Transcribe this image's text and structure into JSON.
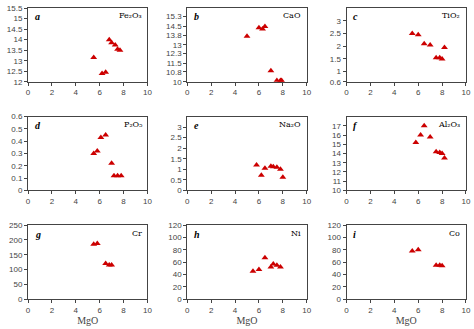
{
  "chart_data": [
    {
      "type": "scatter",
      "title": "a",
      "ylabel": "Fe₂O₃",
      "color": "#cc0000",
      "marker": "triangle-up",
      "grid": false,
      "xlim": [
        0.0,
        10.0
      ],
      "xticks": [
        0,
        2,
        4,
        6,
        8,
        10
      ],
      "ylim": [
        12.0,
        15.5
      ],
      "yticks": [
        12.0,
        12.5,
        13.0,
        13.5,
        14.0,
        14.5,
        15.0,
        15.5
      ],
      "x": [
        5.5,
        6.2,
        6.5,
        6.8,
        7.0,
        7.3,
        7.5,
        7.7
      ],
      "values": [
        13.15,
        12.4,
        12.45,
        14.0,
        13.85,
        13.75,
        13.55,
        13.5
      ]
    },
    {
      "type": "scatter",
      "title": "b",
      "ylabel": "CaO",
      "color": "#cc0000",
      "marker": "triangle-up",
      "grid": false,
      "xlim": [
        0.0,
        10.0
      ],
      "xticks": [
        0,
        2,
        4,
        6,
        8,
        10
      ],
      "ylim": [
        10.0,
        16.0
      ],
      "yticks": [
        10.0,
        10.8,
        11.5,
        12.3,
        13.0,
        13.8,
        14.5,
        15.3
      ],
      "x": [
        5.0,
        6.0,
        6.3,
        6.5,
        7.0,
        7.5,
        7.8,
        7.9
      ],
      "values": [
        13.7,
        14.4,
        14.3,
        14.5,
        10.9,
        10.1,
        10.1,
        10.1
      ]
    },
    {
      "type": "scatter",
      "title": "c",
      "ylabel": "TiO₂",
      "color": "#cc0000",
      "marker": "triangle-up",
      "grid": false,
      "xlim": [
        0.0,
        10.0
      ],
      "xticks": [
        0,
        2,
        4,
        6,
        8,
        10
      ],
      "ylim": [
        0.6,
        3.5
      ],
      "yticks": [
        0.6,
        1.0,
        1.5,
        2.0,
        2.5,
        3.0
      ],
      "x": [
        5.5,
        6.0,
        6.5,
        7.0,
        7.5,
        7.8,
        8.0,
        8.2
      ],
      "values": [
        2.5,
        2.45,
        2.1,
        2.05,
        1.55,
        1.55,
        1.5,
        1.95
      ]
    },
    {
      "type": "scatter",
      "title": "d",
      "ylabel": "P₂O₅",
      "color": "#cc0000",
      "marker": "triangle-up",
      "grid": false,
      "xlim": [
        0.0,
        10.0
      ],
      "xticks": [
        0,
        2,
        4,
        6,
        8,
        10
      ],
      "ylim": [
        0.0,
        0.6
      ],
      "yticks": [
        0.0,
        0.1,
        0.2,
        0.3,
        0.4,
        0.5,
        0.6
      ],
      "x": [
        5.5,
        5.8,
        6.1,
        6.5,
        7.0,
        7.2,
        7.5,
        7.8
      ],
      "values": [
        0.3,
        0.32,
        0.43,
        0.45,
        0.22,
        0.12,
        0.12,
        0.12
      ]
    },
    {
      "type": "scatter",
      "title": "e",
      "ylabel": "Na₂O",
      "color": "#cc0000",
      "marker": "triangle-up",
      "grid": false,
      "xlim": [
        0.0,
        10.0
      ],
      "xticks": [
        0,
        2,
        4,
        6,
        8,
        10
      ],
      "ylim": [
        0.0,
        3.5
      ],
      "yticks": [
        0.0,
        0.5,
        1.0,
        1.5,
        2.0,
        2.5,
        3.0
      ],
      "x": [
        5.8,
        6.2,
        6.5,
        7.0,
        7.2,
        7.5,
        7.8,
        8.0
      ],
      "values": [
        1.2,
        0.72,
        1.05,
        1.15,
        1.12,
        1.1,
        1.0,
        0.62
      ]
    },
    {
      "type": "scatter",
      "title": "f",
      "ylabel": "Al₂O₃",
      "color": "#cc0000",
      "marker": "triangle-up",
      "grid": false,
      "xlim": [
        0.0,
        10.0
      ],
      "xticks": [
        0,
        2,
        4,
        6,
        8,
        10
      ],
      "ylim": [
        10.0,
        18.0
      ],
      "yticks": [
        10.0,
        11.0,
        12.0,
        13.0,
        14.0,
        15.0,
        16.0,
        17.0
      ],
      "x": [
        5.8,
        6.2,
        6.5,
        7.0,
        7.5,
        7.8,
        8.0,
        8.2
      ],
      "values": [
        15.2,
        16.0,
        17.0,
        15.8,
        14.2,
        14.1,
        14.0,
        13.5
      ]
    },
    {
      "type": "scatter",
      "title": "g",
      "ylabel": "Cr",
      "xlabel": "MgO",
      "color": "#cc0000",
      "marker": "triangle-up",
      "grid": false,
      "xlim": [
        0.0,
        10.0
      ],
      "xticks": [
        0,
        2,
        4,
        6,
        8,
        10
      ],
      "ylim": [
        0,
        250
      ],
      "yticks": [
        0,
        50,
        100,
        150,
        200,
        250
      ],
      "x": [
        5.5,
        5.8,
        6.5,
        6.8,
        7.0
      ],
      "values": [
        185,
        188,
        120,
        115,
        115
      ]
    },
    {
      "type": "scatter",
      "title": "h",
      "ylabel": "Ni",
      "xlabel": "MgO",
      "color": "#cc0000",
      "marker": "triangle-up",
      "grid": false,
      "xlim": [
        0.0,
        10.0
      ],
      "xticks": [
        0,
        2,
        4,
        6,
        8,
        10
      ],
      "ylim": [
        0,
        120
      ],
      "yticks": [
        0,
        20,
        40,
        60,
        80,
        100,
        120
      ],
      "x": [
        5.5,
        6.0,
        6.5,
        7.0,
        7.2,
        7.5,
        7.8
      ],
      "values": [
        45,
        48,
        67,
        52,
        57,
        55,
        52
      ]
    },
    {
      "type": "scatter",
      "title": "i",
      "ylabel": "Co",
      "xlabel": "MgO",
      "color": "#cc0000",
      "marker": "triangle-up",
      "grid": false,
      "xlim": [
        0.0,
        10.0
      ],
      "xticks": [
        0,
        2,
        4,
        6,
        8,
        10
      ],
      "ylim": [
        0,
        120
      ],
      "yticks": [
        0,
        20,
        40,
        60,
        80,
        100,
        120
      ],
      "x": [
        5.5,
        6.0,
        7.5,
        7.8,
        8.0
      ],
      "values": [
        78,
        80,
        55,
        55,
        54
      ]
    }
  ]
}
